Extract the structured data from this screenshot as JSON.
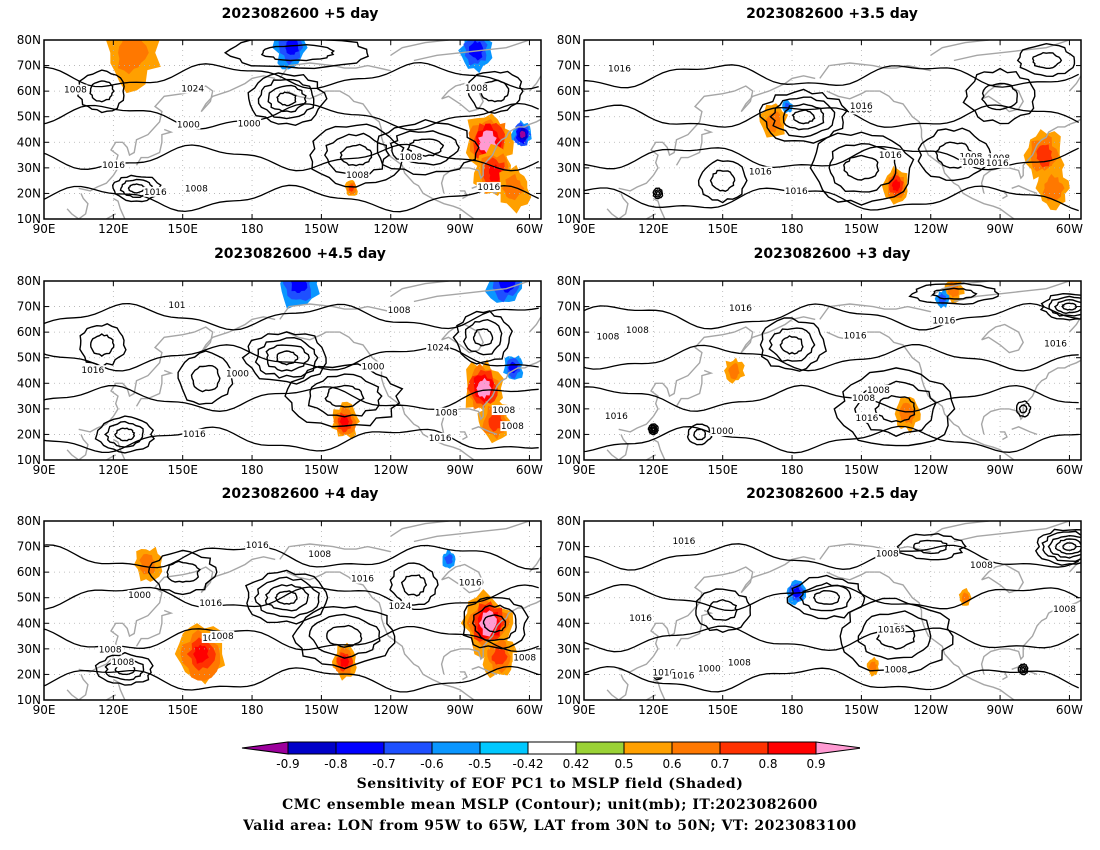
{
  "panels": [
    {
      "title": "2023082600  +5 day",
      "contour_labels": [
        "1008",
        "1000",
        "1016",
        "1016",
        "1000",
        "1016",
        "1008",
        "1008",
        "1024",
        "1008",
        "1008"
      ],
      "features": {
        "positive": [
          {
            "lon": -78,
            "lat": 40,
            "r": 7,
            "strength": 0.9
          },
          {
            "lon": -75,
            "lat": 28,
            "r": 6,
            "strength": 0.7
          },
          {
            "lon": -67,
            "lat": 22,
            "r": 5,
            "strength": 0.5
          },
          {
            "lon": 128,
            "lat": 75,
            "r": 8,
            "strength": 0.5
          },
          {
            "lon": -137,
            "lat": 22,
            "r": 2,
            "strength": 0.6
          }
        ],
        "negative": [
          {
            "lon": -163,
            "lat": 77,
            "r": 5,
            "strength": 0.6
          },
          {
            "lon": -83,
            "lat": 76,
            "r": 5,
            "strength": 0.6
          },
          {
            "lon": -63,
            "lat": 43,
            "r": 3,
            "strength": 0.8
          }
        ]
      }
    },
    {
      "title": "2023082600  +3.5 day",
      "contour_labels": [
        "1008",
        "1016",
        "1016",
        "1008",
        "1008",
        "1008",
        "1016",
        "1016",
        "1016",
        "1016"
      ],
      "features": {
        "positive": [
          {
            "lon": -71,
            "lat": 35,
            "r": 6,
            "strength": 0.6
          },
          {
            "lon": -67,
            "lat": 22,
            "r": 5,
            "strength": 0.5
          },
          {
            "lon": -135,
            "lat": 23,
            "r": 4,
            "strength": 0.65
          },
          {
            "lon": 172,
            "lat": 48,
            "r": 4,
            "strength": 0.5
          }
        ],
        "negative": [
          {
            "lon": 178,
            "lat": 54,
            "r": 1.5,
            "strength": 0.5
          }
        ]
      }
    },
    {
      "title": "2023082600  +4.5 day",
      "contour_labels": [
        "1016",
        "1008",
        "1008",
        "1000",
        "1016",
        "1000",
        "1024",
        "1008",
        "1016",
        "1008",
        "101"
      ],
      "features": {
        "positive": [
          {
            "lon": -80,
            "lat": 38,
            "r": 6,
            "strength": 0.9
          },
          {
            "lon": -75,
            "lat": 25,
            "r": 5,
            "strength": 0.6
          },
          {
            "lon": -140,
            "lat": 25,
            "r": 4,
            "strength": 0.7
          }
        ],
        "negative": [
          {
            "lon": -160,
            "lat": 79,
            "r": 6,
            "strength": 0.6
          },
          {
            "lon": -70,
            "lat": 80,
            "r": 6,
            "strength": 0.6
          },
          {
            "lon": -67,
            "lat": 46,
            "r": 3,
            "strength": 0.6
          }
        ]
      }
    },
    {
      "title": "2023082600  +3 day",
      "contour_labels": [
        "1008",
        "1016",
        "1008",
        "1016",
        "1016",
        "1016",
        "1000",
        "1016",
        "1016",
        "1008",
        "1008"
      ],
      "features": {
        "positive": [
          {
            "lon": -130,
            "lat": 28,
            "r": 4,
            "strength": 0.5
          },
          {
            "lon": 155,
            "lat": 45,
            "r": 3,
            "strength": 0.5
          },
          {
            "lon": -110,
            "lat": 77,
            "r": 3,
            "strength": 0.5
          }
        ],
        "negative": [
          {
            "lon": -115,
            "lat": 73,
            "r": 2,
            "strength": 0.5
          }
        ]
      }
    },
    {
      "title": "2023082600  +4 day",
      "contour_labels": [
        "1008",
        "1016",
        "1016",
        "1016",
        "1000",
        "1008",
        "1024",
        "1008",
        "1008",
        "1008",
        "1016",
        "1008"
      ],
      "features": {
        "positive": [
          {
            "lon": -78,
            "lat": 40,
            "r": 7,
            "strength": 0.85
          },
          {
            "lon": -73,
            "lat": 27,
            "r": 5,
            "strength": 0.6
          },
          {
            "lon": 158,
            "lat": 28,
            "r": 7,
            "strength": 0.65
          },
          {
            "lon": -140,
            "lat": 25,
            "r": 4,
            "strength": 0.65
          },
          {
            "lon": 135,
            "lat": 63,
            "r": 4,
            "strength": 0.5
          }
        ],
        "negative": [
          {
            "lon": -95,
            "lat": 65,
            "r": 2,
            "strength": 0.5
          }
        ]
      }
    },
    {
      "title": "2023082600  +2.5 day",
      "contour_labels": [
        "1008",
        "1008",
        "1016",
        "1008",
        "1016",
        "1016",
        "1016",
        "1000",
        "1016",
        "1008",
        "1016",
        "1008"
      ],
      "features": {
        "positive": [
          {
            "lon": -145,
            "lat": 23,
            "r": 2,
            "strength": 0.5
          },
          {
            "lon": -105,
            "lat": 50,
            "r": 2,
            "strength": 0.5
          }
        ],
        "negative": [
          {
            "lon": -178,
            "lat": 52,
            "r": 3,
            "strength": 0.6
          }
        ]
      }
    }
  ],
  "axes": {
    "lon_ticks": [
      "90E",
      "120E",
      "150E",
      "180",
      "150W",
      "120W",
      "90W",
      "60W"
    ],
    "lat_ticks": [
      "80N",
      "70N",
      "60N",
      "50N",
      "40N",
      "30N",
      "20N",
      "10N"
    ],
    "lon_range": [
      90,
      305
    ],
    "lat_range": [
      10,
      80
    ]
  },
  "colorbar": {
    "ticks": [
      "-0.9",
      "-0.8",
      "-0.7",
      "-0.6",
      "-0.5",
      "-0.42",
      "0.42",
      "0.5",
      "0.6",
      "0.7",
      "0.8",
      "0.9"
    ],
    "colors": [
      "#9c009c",
      "#0000c8",
      "#0000ff",
      "#1e50ff",
      "#0a96ff",
      "#00c8ff",
      "#ffffff",
      "#9ad236",
      "#ffa000",
      "#ff7800",
      "#ff3200",
      "#ff0000",
      "#ff9ad2"
    ]
  },
  "caption": {
    "line1": "Sensitivity of EOF PC1 to MSLP field (Shaded)",
    "line2": "CMC ensemble mean MSLP (Contour); unit(mb); IT:2023082600",
    "line3": "Valid area: LON from 95W to 65W, LAT from 30N to 50N; VT: 2023083100"
  }
}
